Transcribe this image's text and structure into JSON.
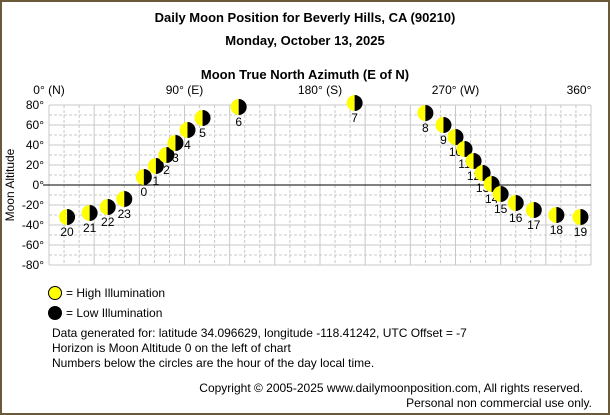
{
  "title": "Daily Moon Position for Beverly Hills, CA (90210)",
  "date": "Monday, October 13, 2025",
  "chart_data": {
    "type": "scatter",
    "title": "Moon True North Azimuth (E of N)",
    "xlabel": "Moon True North Azimuth (E of N)",
    "ylabel": "Moon Altitude",
    "xlim": [
      0,
      360
    ],
    "ylim": [
      -80,
      80
    ],
    "x_ticks": [
      "0° (N)",
      "90° (E)",
      "180° (S)",
      "270° (W)",
      "360°"
    ],
    "y_ticks": [
      "80°",
      "60°",
      "40°",
      "20°",
      "0°",
      "-20°",
      "-40°",
      "-60°",
      "-80°"
    ],
    "grid": true,
    "horizon_line": 0,
    "points": [
      {
        "hour": "0",
        "azimuth": 63,
        "altitude": 8
      },
      {
        "hour": "1",
        "azimuth": 71,
        "altitude": 19
      },
      {
        "hour": "2",
        "azimuth": 78,
        "altitude": 30
      },
      {
        "hour": "3",
        "azimuth": 84,
        "altitude": 42
      },
      {
        "hour": "4",
        "azimuth": 92,
        "altitude": 55
      },
      {
        "hour": "5",
        "azimuth": 102,
        "altitude": 67
      },
      {
        "hour": "6",
        "azimuth": 126,
        "altitude": 78
      },
      {
        "hour": "7",
        "azimuth": 203,
        "altitude": 82
      },
      {
        "hour": "8",
        "azimuth": 250,
        "altitude": 72
      },
      {
        "hour": "9",
        "azimuth": 262,
        "altitude": 60
      },
      {
        "hour": "10",
        "azimuth": 270,
        "altitude": 48
      },
      {
        "hour": "11",
        "azimuth": 276,
        "altitude": 36
      },
      {
        "hour": "12",
        "azimuth": 282,
        "altitude": 24
      },
      {
        "hour": "13",
        "azimuth": 288,
        "altitude": 12
      },
      {
        "hour": "14",
        "azimuth": 294,
        "altitude": 1
      },
      {
        "hour": "15",
        "azimuth": 300,
        "altitude": -9
      },
      {
        "hour": "16",
        "azimuth": 310,
        "altitude": -18
      },
      {
        "hour": "17",
        "azimuth": 322,
        "altitude": -25
      },
      {
        "hour": "18",
        "azimuth": 337,
        "altitude": -30
      },
      {
        "hour": "19",
        "azimuth": 353,
        "altitude": -32
      },
      {
        "hour": "20",
        "azimuth": 12,
        "altitude": -32
      },
      {
        "hour": "21",
        "azimuth": 27,
        "altitude": -28
      },
      {
        "hour": "22",
        "azimuth": 39,
        "altitude": -22
      },
      {
        "hour": "23",
        "azimuth": 50,
        "altitude": -14
      }
    ],
    "legend": [
      {
        "label": "= High Illumination",
        "color": "#ffff00"
      },
      {
        "label": "= Low Illumination",
        "color": "#000000"
      }
    ]
  },
  "info": {
    "line1": "Data generated for: latitude 34.096629, longitude -118.41242, UTC Offset = -7",
    "line2": "Horizon is Moon Altitude 0 on the left of chart",
    "line3": "Numbers below the circles are the hour of the day local time."
  },
  "copyright": {
    "line1": "Copyright © 2005-2025 www.dailymoonposition.com, All rights reserved.",
    "line2": "Personal non commercial use only."
  },
  "colors": {
    "frame": "#6b5a3a",
    "moon_light": "#ffff00",
    "moon_dark": "#000000",
    "grid": "#c0c0c0"
  }
}
